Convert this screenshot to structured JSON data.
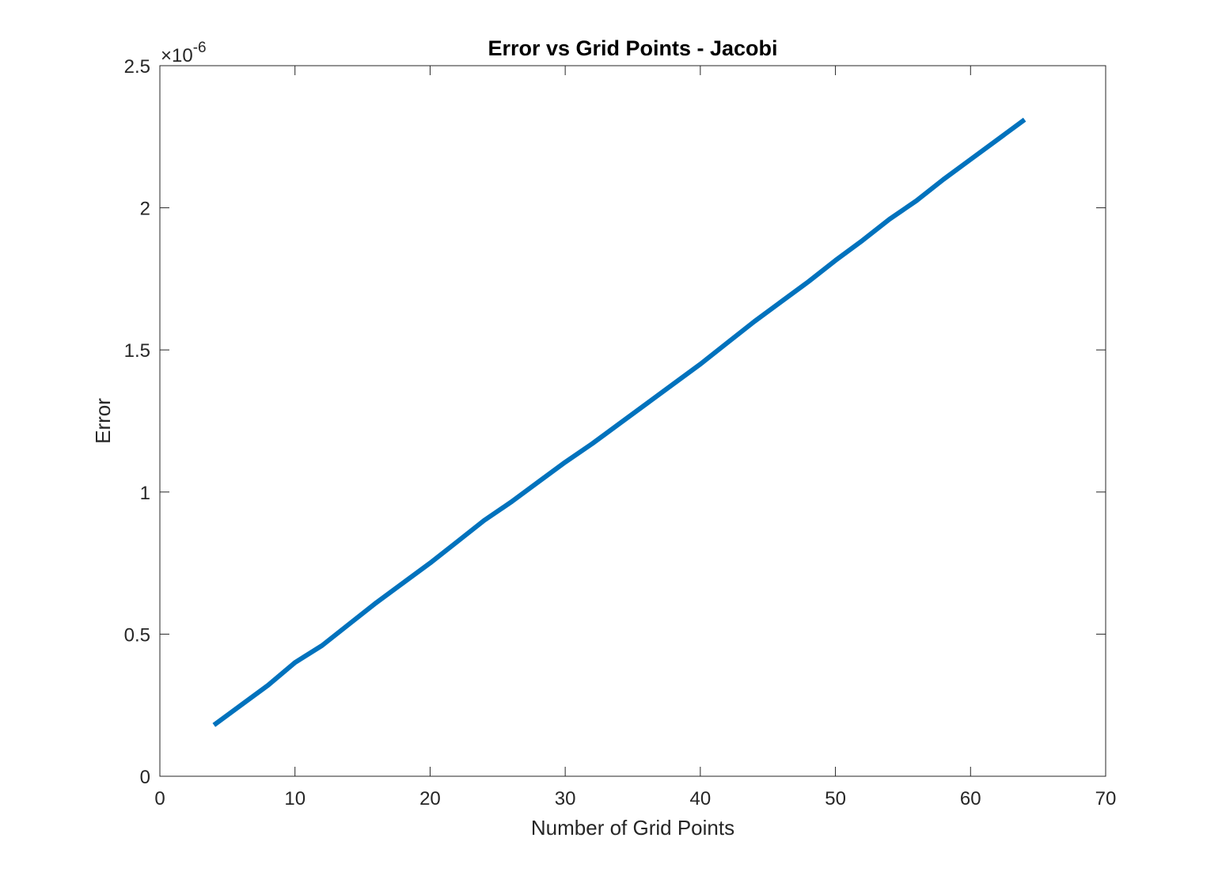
{
  "chart_data": {
    "type": "line",
    "title": "Error vs Grid Points - Jacobi",
    "xlabel": "Number of Grid Points",
    "ylabel": "Error",
    "xlim": [
      0,
      70
    ],
    "ylim": [
      0,
      2.5
    ],
    "x_ticks": [
      "0",
      "10",
      "20",
      "30",
      "40",
      "50",
      "60",
      "70"
    ],
    "y_ticks": [
      "0",
      "0.5",
      "1",
      "1.5",
      "2",
      "2.5"
    ],
    "y_exponent": {
      "base": "×10",
      "power": "-6"
    },
    "grid": false,
    "series": [
      {
        "color": "#0072BD",
        "x": [
          4,
          6,
          8,
          10,
          12,
          14,
          16,
          18,
          20,
          22,
          24,
          26,
          28,
          30,
          32,
          34,
          36,
          38,
          40,
          42,
          44,
          46,
          48,
          50,
          52,
          54,
          56,
          58,
          60,
          62,
          64
        ],
        "y": [
          0.18,
          0.25,
          0.32,
          0.4,
          0.46,
          0.535,
          0.61,
          0.68,
          0.75,
          0.825,
          0.9,
          0.965,
          1.035,
          1.105,
          1.17,
          1.24,
          1.31,
          1.38,
          1.45,
          1.525,
          1.6,
          1.67,
          1.74,
          1.815,
          1.885,
          1.96,
          2.025,
          2.1,
          2.17,
          2.24,
          2.31
        ]
      }
    ]
  }
}
